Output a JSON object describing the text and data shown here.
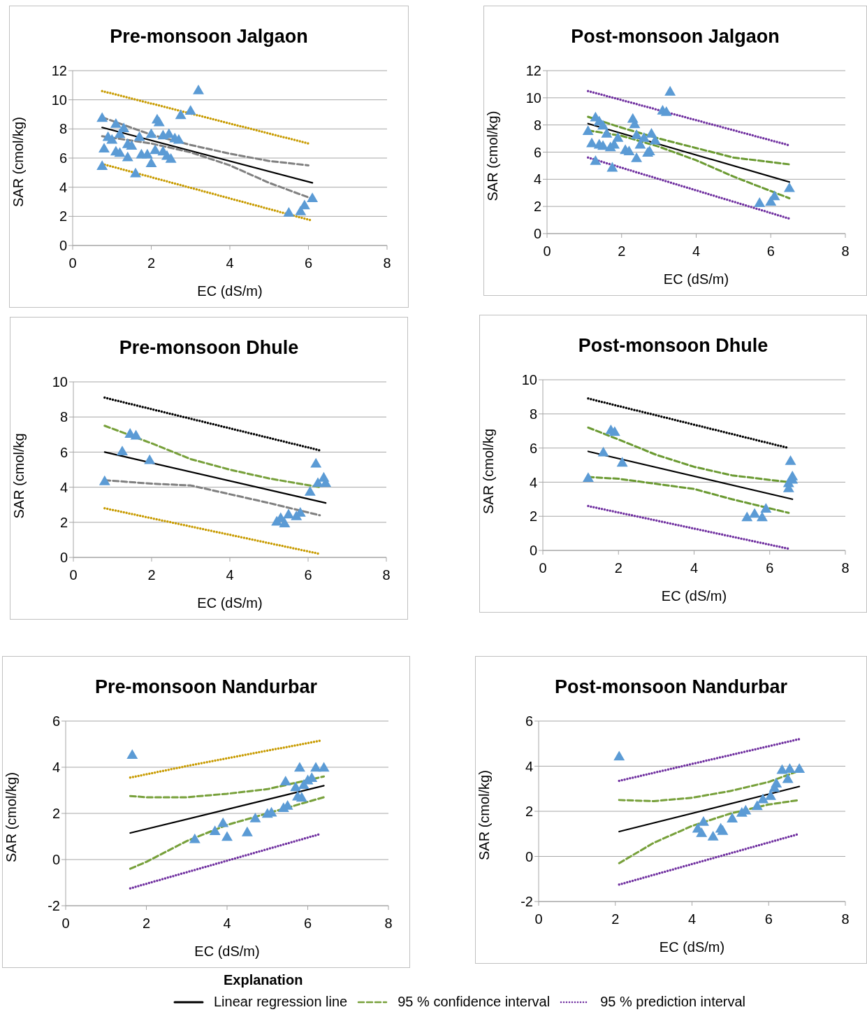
{
  "chart_data": [
    {
      "type": "scatter",
      "title": "Pre-monsoon Jalgaon",
      "xlabel": "EC (dS/m)",
      "ylabel": "SAR (cmol/kg)",
      "xlim": [
        0,
        8
      ],
      "xticks": [
        0,
        2,
        4,
        6,
        8
      ],
      "ylim": [
        0,
        12
      ],
      "yticks": [
        0,
        2,
        4,
        6,
        8,
        10,
        12
      ],
      "grid": "y",
      "series": [
        {
          "marker": "triangle",
          "color": "#5b9bd5",
          "x": [
            0.75,
            0.75,
            0.8,
            0.9,
            1.0,
            1.1,
            1.1,
            1.2,
            1.2,
            1.3,
            1.4,
            1.4,
            1.5,
            1.6,
            1.7,
            1.75,
            1.9,
            2.0,
            2.0,
            2.1,
            2.15,
            2.2,
            2.3,
            2.3,
            2.4,
            2.45,
            2.5,
            2.6,
            2.7,
            2.75,
            3.0,
            3.2,
            5.5,
            5.8,
            5.9,
            6.1
          ],
          "values": [
            8.7,
            5.4,
            6.6,
            7.4,
            7.2,
            8.3,
            6.4,
            7.6,
            6.3,
            8.0,
            6.9,
            6.0,
            6.8,
            4.9,
            7.4,
            6.2,
            6.2,
            7.6,
            5.6,
            6.5,
            8.6,
            8.4,
            7.5,
            6.4,
            6.1,
            7.6,
            5.9,
            7.3,
            7.2,
            8.9,
            9.2,
            10.6,
            2.2,
            2.3,
            2.7,
            3.2
          ]
        },
        {
          "type": "line",
          "marker": "none",
          "line_style": "solid",
          "color": "#000000",
          "x": [
            0.75,
            6.1
          ],
          "values": [
            8.1,
            4.3
          ]
        },
        {
          "type": "line",
          "marker": "none",
          "line_style": "dashed",
          "color": "#808080",
          "x": [
            0.75,
            2,
            3,
            4,
            5,
            6
          ],
          "values": [
            8.8,
            7.6,
            6.9,
            6.3,
            5.8,
            5.5
          ]
        },
        {
          "type": "line",
          "marker": "none",
          "line_style": "dashed",
          "color": "#808080",
          "x": [
            0.75,
            2,
            3,
            4,
            5,
            6.1
          ],
          "values": [
            7.5,
            7.0,
            6.4,
            5.5,
            4.3,
            3.2
          ]
        },
        {
          "type": "line",
          "marker": "none",
          "line_style": "dotted",
          "color": "#c89b00",
          "x": [
            0.75,
            6
          ],
          "values": [
            10.6,
            7.0
          ]
        },
        {
          "type": "line",
          "marker": "none",
          "line_style": "dotted",
          "color": "#c89b00",
          "x": [
            0.75,
            6.1
          ],
          "values": [
            5.6,
            1.7
          ]
        }
      ]
    },
    {
      "type": "scatter",
      "title": "Post-monsoon Jalgaon",
      "xlabel": "EC (dS/m)",
      "ylabel": "SAR (cmol/kg)",
      "xlim": [
        0,
        8
      ],
      "xticks": [
        0,
        2,
        4,
        6,
        8
      ],
      "ylim": [
        0,
        12
      ],
      "yticks": [
        0,
        2,
        4,
        6,
        8,
        10,
        12
      ],
      "grid": "y",
      "series": [
        {
          "marker": "triangle",
          "color": "#5b9bd5",
          "x": [
            1.1,
            1.2,
            1.3,
            1.3,
            1.4,
            1.4,
            1.5,
            1.5,
            1.6,
            1.7,
            1.75,
            1.8,
            1.9,
            2.1,
            2.2,
            2.3,
            2.35,
            2.4,
            2.4,
            2.5,
            2.6,
            2.7,
            2.75,
            2.8,
            2.9,
            3.1,
            3.2,
            3.3,
            5.7,
            6.0,
            6.1,
            6.5
          ],
          "values": [
            7.5,
            6.6,
            8.5,
            5.3,
            8.2,
            6.5,
            7.9,
            6.4,
            7.3,
            6.3,
            4.8,
            6.5,
            7.0,
            6.1,
            6.0,
            8.4,
            8.0,
            5.5,
            7.2,
            6.5,
            7.0,
            5.9,
            6.0,
            7.3,
            6.8,
            9.0,
            8.9,
            10.4,
            2.2,
            2.3,
            2.7,
            3.3
          ]
        },
        {
          "type": "line",
          "marker": "none",
          "line_style": "solid",
          "color": "#000000",
          "x": [
            1.1,
            6.5
          ],
          "values": [
            8.1,
            3.8
          ]
        },
        {
          "type": "line",
          "marker": "none",
          "line_style": "dashed",
          "color": "#6b9a32",
          "x": [
            1.1,
            2,
            3,
            4,
            5,
            6.5
          ],
          "values": [
            8.6,
            7.8,
            7.0,
            6.3,
            5.6,
            5.1
          ]
        },
        {
          "type": "line",
          "marker": "none",
          "line_style": "dashed",
          "color": "#6b9a32",
          "x": [
            1.1,
            2,
            3,
            4,
            5,
            6.5
          ],
          "values": [
            7.6,
            7.2,
            6.4,
            5.4,
            4.2,
            2.6
          ]
        },
        {
          "type": "line",
          "marker": "none",
          "line_style": "dotted",
          "color": "#7030a0",
          "x": [
            1.1,
            6.5
          ],
          "values": [
            10.5,
            6.5
          ]
        },
        {
          "type": "line",
          "marker": "none",
          "line_style": "dotted",
          "color": "#7030a0",
          "x": [
            1.1,
            6.5
          ],
          "values": [
            5.6,
            1.1
          ]
        }
      ]
    },
    {
      "type": "scatter",
      "title": "Pre-monsoon Dhule",
      "xlabel": "EC (dS/m)",
      "ylabel": "SAR (cmol/kg",
      "xlim": [
        0,
        8
      ],
      "xticks": [
        0,
        2,
        4,
        6,
        8
      ],
      "ylim": [
        0,
        10
      ],
      "yticks": [
        0,
        2,
        4,
        6,
        8,
        10
      ],
      "grid": "y",
      "series": [
        {
          "marker": "triangle",
          "color": "#5b9bd5",
          "x": [
            0.8,
            1.25,
            1.45,
            1.6,
            1.95,
            5.2,
            5.3,
            5.4,
            5.5,
            5.7,
            5.8,
            6.05,
            6.2,
            6.25,
            6.4,
            6.45
          ],
          "values": [
            4.3,
            6.0,
            7.0,
            6.9,
            5.5,
            2.0,
            2.2,
            1.9,
            2.4,
            2.3,
            2.5,
            3.7,
            5.3,
            4.2,
            4.5,
            4.2
          ]
        },
        {
          "type": "line",
          "marker": "none",
          "line_style": "solid",
          "color": "#000000",
          "x": [
            0.8,
            6.45
          ],
          "values": [
            6.0,
            3.1
          ]
        },
        {
          "type": "line",
          "marker": "none",
          "line_style": "dashed",
          "color": "#77a03a",
          "x": [
            0.8,
            2,
            3,
            4,
            5,
            6.3
          ],
          "values": [
            7.5,
            6.5,
            5.6,
            5.0,
            4.5,
            4.0
          ]
        },
        {
          "type": "line",
          "marker": "none",
          "line_style": "dashed",
          "color": "#808080",
          "x": [
            0.8,
            2,
            3,
            4,
            5,
            6.3
          ],
          "values": [
            4.4,
            4.2,
            4.1,
            3.6,
            3.1,
            2.4
          ]
        },
        {
          "type": "line",
          "marker": "none",
          "line_style": "dotted",
          "color": "#000000",
          "x": [
            0.8,
            6.3
          ],
          "values": [
            9.1,
            6.1
          ]
        },
        {
          "type": "line",
          "marker": "none",
          "line_style": "dotted",
          "color": "#c89b00",
          "x": [
            0.8,
            6.3
          ],
          "values": [
            2.8,
            0.2
          ]
        }
      ]
    },
    {
      "type": "scatter",
      "title": "Post-monsoon Dhule",
      "xlabel": "EC (dS/m)",
      "ylabel": "SAR (cmol/kg",
      "xlim": [
        0,
        8
      ],
      "xticks": [
        0,
        2,
        4,
        6,
        8
      ],
      "ylim": [
        0,
        10
      ],
      "yticks": [
        0,
        2,
        4,
        6,
        8,
        10
      ],
      "grid": "y",
      "series": [
        {
          "marker": "triangle",
          "color": "#5b9bd5",
          "x": [
            1.2,
            1.6,
            1.8,
            1.9,
            2.1,
            5.4,
            5.6,
            5.8,
            5.9,
            6.5,
            6.5,
            6.55,
            6.6,
            6.6
          ],
          "values": [
            4.2,
            5.7,
            7.0,
            6.9,
            5.1,
            1.9,
            2.1,
            1.9,
            2.4,
            3.6,
            3.9,
            5.2,
            4.1,
            4.3
          ]
        },
        {
          "type": "line",
          "marker": "none",
          "line_style": "solid",
          "color": "#000000",
          "x": [
            1.2,
            6.6
          ],
          "values": [
            5.8,
            3.0
          ]
        },
        {
          "type": "line",
          "marker": "none",
          "line_style": "dashed",
          "color": "#6b9a32",
          "x": [
            1.2,
            2,
            3,
            4,
            5,
            6.5
          ],
          "values": [
            7.2,
            6.5,
            5.6,
            4.9,
            4.4,
            4.0
          ]
        },
        {
          "type": "line",
          "marker": "none",
          "line_style": "dashed",
          "color": "#6b9a32",
          "x": [
            1.2,
            2,
            3,
            4,
            5,
            6.5
          ],
          "values": [
            4.3,
            4.2,
            3.9,
            3.6,
            3.0,
            2.2
          ]
        },
        {
          "type": "line",
          "marker": "none",
          "line_style": "dotted",
          "color": "#000000",
          "x": [
            1.2,
            6.5
          ],
          "values": [
            8.9,
            6.0
          ]
        },
        {
          "type": "line",
          "marker": "none",
          "line_style": "dotted",
          "color": "#7030a0",
          "x": [
            1.2,
            6.5
          ],
          "values": [
            2.6,
            0.1
          ]
        }
      ]
    },
    {
      "type": "scatter",
      "title": "Pre-monsoon Nandurbar",
      "xlabel": "EC (dS/m)",
      "ylabel": "SAR (cmol/kg)",
      "xlim": [
        0,
        8
      ],
      "xticks": [
        0,
        2,
        4,
        6,
        8
      ],
      "ylim": [
        -2,
        6
      ],
      "yticks": [
        -2,
        0,
        2,
        4,
        6
      ],
      "grid": "y",
      "series": [
        {
          "marker": "triangle",
          "color": "#5b9bd5",
          "x": [
            1.65,
            3.2,
            3.7,
            3.9,
            4.0,
            4.5,
            4.7,
            5.0,
            5.1,
            5.4,
            5.5,
            5.45,
            5.7,
            5.8,
            5.75,
            5.85,
            5.9,
            6.0,
            6.1,
            6.2,
            6.4
          ],
          "values": [
            4.5,
            0.85,
            1.2,
            1.55,
            0.95,
            1.15,
            1.75,
            1.95,
            2.0,
            2.2,
            2.3,
            3.35,
            3.1,
            3.95,
            2.7,
            2.65,
            3.2,
            3.4,
            3.5,
            3.95,
            3.95
          ]
        },
        {
          "type": "line",
          "marker": "none",
          "line_style": "solid",
          "color": "#000000",
          "x": [
            1.6,
            6.4
          ],
          "values": [
            1.15,
            3.2
          ]
        },
        {
          "type": "line",
          "marker": "none",
          "line_style": "dashed",
          "color": "#77a03a",
          "x": [
            1.6,
            2,
            3,
            4,
            5,
            6.4
          ],
          "values": [
            2.75,
            2.7,
            2.7,
            2.85,
            3.05,
            3.6
          ]
        },
        {
          "type": "line",
          "marker": "none",
          "line_style": "dashed",
          "color": "#77a03a",
          "x": [
            1.6,
            2,
            3,
            4,
            5,
            6.4
          ],
          "values": [
            -0.4,
            -0.1,
            0.8,
            1.5,
            2.0,
            2.7
          ]
        },
        {
          "type": "line",
          "marker": "none",
          "line_style": "dotted",
          "color": "#c89b00",
          "x": [
            1.6,
            3,
            6.3
          ],
          "values": [
            3.55,
            4.05,
            5.15
          ]
        },
        {
          "type": "line",
          "marker": "none",
          "line_style": "dotted",
          "color": "#7030a0",
          "x": [
            1.6,
            6.3
          ],
          "values": [
            -1.25,
            1.1
          ]
        }
      ]
    },
    {
      "type": "scatter",
      "title": "Post-monsoon Nandurbar",
      "xlabel": "EC (dS/m)",
      "ylabel": "SAR (cmol/kg)",
      "xlim": [
        0,
        8
      ],
      "xticks": [
        0,
        2,
        4,
        6,
        8
      ],
      "ylim": [
        -2,
        6
      ],
      "yticks": [
        -2,
        0,
        2,
        4,
        6
      ],
      "grid": "y",
      "legend": "bottom",
      "legend_title": "Explanation",
      "series": [
        {
          "marker": "triangle",
          "color": "#5b9bd5",
          "x": [
            2.1,
            4.15,
            4.25,
            4.3,
            4.55,
            4.75,
            4.8,
            5.05,
            5.3,
            5.4,
            5.7,
            5.85,
            6.05,
            6.15,
            6.2,
            6.35,
            6.5,
            6.55,
            6.8
          ],
          "values": [
            4.4,
            1.2,
            1.0,
            1.5,
            0.85,
            1.2,
            1.1,
            1.65,
            1.9,
            2.0,
            2.2,
            2.5,
            2.65,
            3.0,
            3.2,
            3.8,
            3.4,
            3.85,
            3.85
          ]
        },
        {
          "type": "line",
          "marker": "none",
          "line_style": "solid",
          "color": "#000000",
          "name": "Linear regression line",
          "x": [
            2.1,
            6.8
          ],
          "values": [
            1.1,
            3.1
          ]
        },
        {
          "type": "line",
          "marker": "none",
          "line_style": "dashed",
          "color": "#77a03a",
          "name": "95 % confidence interval",
          "x": [
            2.1,
            3,
            4,
            5,
            6,
            6.8
          ],
          "values": [
            2.5,
            2.45,
            2.6,
            2.9,
            3.3,
            3.8
          ]
        },
        {
          "type": "line",
          "marker": "none",
          "line_style": "dashed",
          "color": "#77a03a",
          "x": [
            2.1,
            3,
            4,
            5,
            6,
            6.8
          ],
          "values": [
            -0.3,
            0.6,
            1.35,
            1.9,
            2.3,
            2.5
          ]
        },
        {
          "type": "line",
          "marker": "none",
          "line_style": "dotted",
          "color": "#7030a0",
          "name": "95 % prediction interval",
          "x": [
            2.1,
            6.8
          ],
          "values": [
            3.35,
            5.2
          ]
        },
        {
          "type": "line",
          "marker": "none",
          "line_style": "dotted",
          "color": "#7030a0",
          "x": [
            2.1,
            6.8
          ],
          "values": [
            -1.25,
            1.0
          ]
        }
      ]
    }
  ]
}
